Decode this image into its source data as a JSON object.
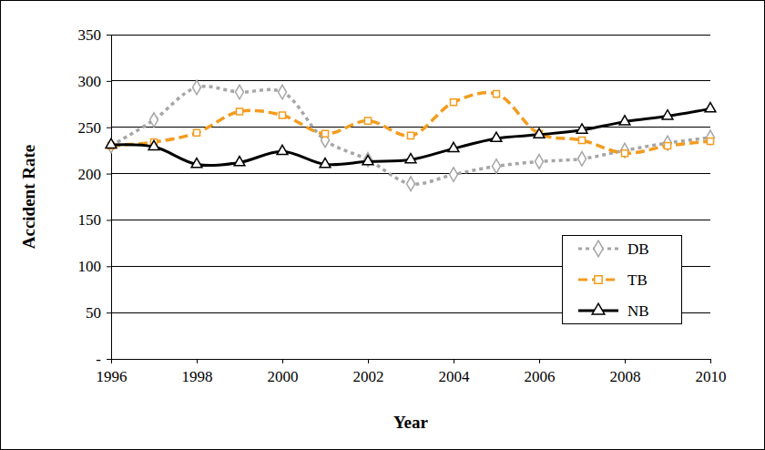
{
  "chart_data": {
    "type": "line",
    "x_label": "Year",
    "y_label": "Accident Rate",
    "x": [
      1996,
      1997,
      1998,
      1999,
      2000,
      2001,
      2002,
      2003,
      2004,
      2005,
      2006,
      2007,
      2008,
      2009,
      2010
    ],
    "xlim": [
      1996,
      2010
    ],
    "xticks": [
      1996,
      1998,
      2000,
      2002,
      2004,
      2006,
      2008,
      2010
    ],
    "ylim": [
      0,
      350
    ],
    "yticks": [
      {
        "value": 0,
        "label": "-"
      },
      50,
      100,
      150,
      200,
      250,
      300,
      350
    ],
    "grid": true,
    "legend": "right",
    "series": [
      {
        "name": "DB",
        "color": "#a6a6a6",
        "marker": "diamond",
        "line_style": "dotted",
        "values": [
          230,
          258,
          293,
          288,
          288,
          236,
          215,
          189,
          199,
          208,
          213,
          216,
          225,
          233,
          239
        ]
      },
      {
        "name": "TB",
        "color": "#f39c1f",
        "marker": "square",
        "line_style": "dashed",
        "values": [
          230,
          234,
          244,
          267,
          263,
          243,
          257,
          241,
          277,
          286,
          243,
          236,
          222,
          230,
          235
        ]
      },
      {
        "name": "NB",
        "color": "#000000",
        "marker": "triangle",
        "line_style": "solid",
        "values": [
          231,
          229,
          210,
          212,
          224,
          210,
          213,
          215,
          227,
          238,
          242,
          247,
          256,
          262,
          270
        ]
      }
    ]
  }
}
